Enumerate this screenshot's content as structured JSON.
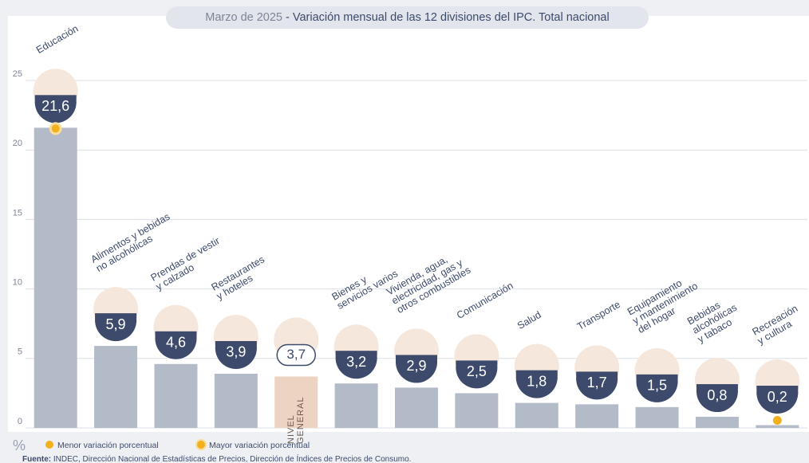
{
  "chart_data": {
    "type": "bar",
    "subtitle": "Marzo de 2025",
    "title": "- Variación mensual de las 12 divisiones del IPC. Total nacional",
    "categories": [
      "Educación",
      "Alimentos y bebidas\nno alcohólicas",
      "Prendas de vestir\ny calzado",
      "Restaurantes\ny hoteles",
      "NIVEL\nGENERAL",
      "Bienes y\nservicios varios",
      "Vivienda, agua,\nelectricidad, gas y\notros combustibles",
      "Comunicación",
      "Salud",
      "Transporte",
      "Equipamiento\ny mantenimiento\ndel hogar",
      "Bebidas\nalcohólicas\ny tabaco",
      "Recreación\ny cultura"
    ],
    "values": [
      21.6,
      5.9,
      4.6,
      3.9,
      3.7,
      3.2,
      2.9,
      2.5,
      1.8,
      1.7,
      1.5,
      0.8,
      0.2
    ],
    "value_labels": [
      "21,6",
      "5,9",
      "4,6",
      "3,9",
      "3,7",
      "3,2",
      "2,9",
      "2,5",
      "1,8",
      "1,7",
      "1,5",
      "0,8",
      "0,2"
    ],
    "bar_colors": [
      "#b3bac8",
      "#b3bac8",
      "#b3bac8",
      "#b3bac8",
      "#ecd3c2",
      "#b3bac8",
      "#b3bac8",
      "#b3bac8",
      "#b3bac8",
      "#b3bac8",
      "#b3bac8",
      "#b3bac8",
      "#b3bac8"
    ],
    "ylim": [
      0,
      25
    ],
    "yticks": [
      0,
      5,
      10,
      15,
      20,
      25
    ],
    "grid": true,
    "y_unit": "%",
    "legend": [
      {
        "name": "Menor variación porcentual",
        "color": "#f2b01e"
      },
      {
        "name": "Mayor variación porcentual",
        "color": "#f2b01e"
      }
    ],
    "source_label": "Fuente:",
    "source": "INDEC, Dirección Nacional de Estadísticas de Precios, Dirección de Índices de Precios de Consumo."
  }
}
